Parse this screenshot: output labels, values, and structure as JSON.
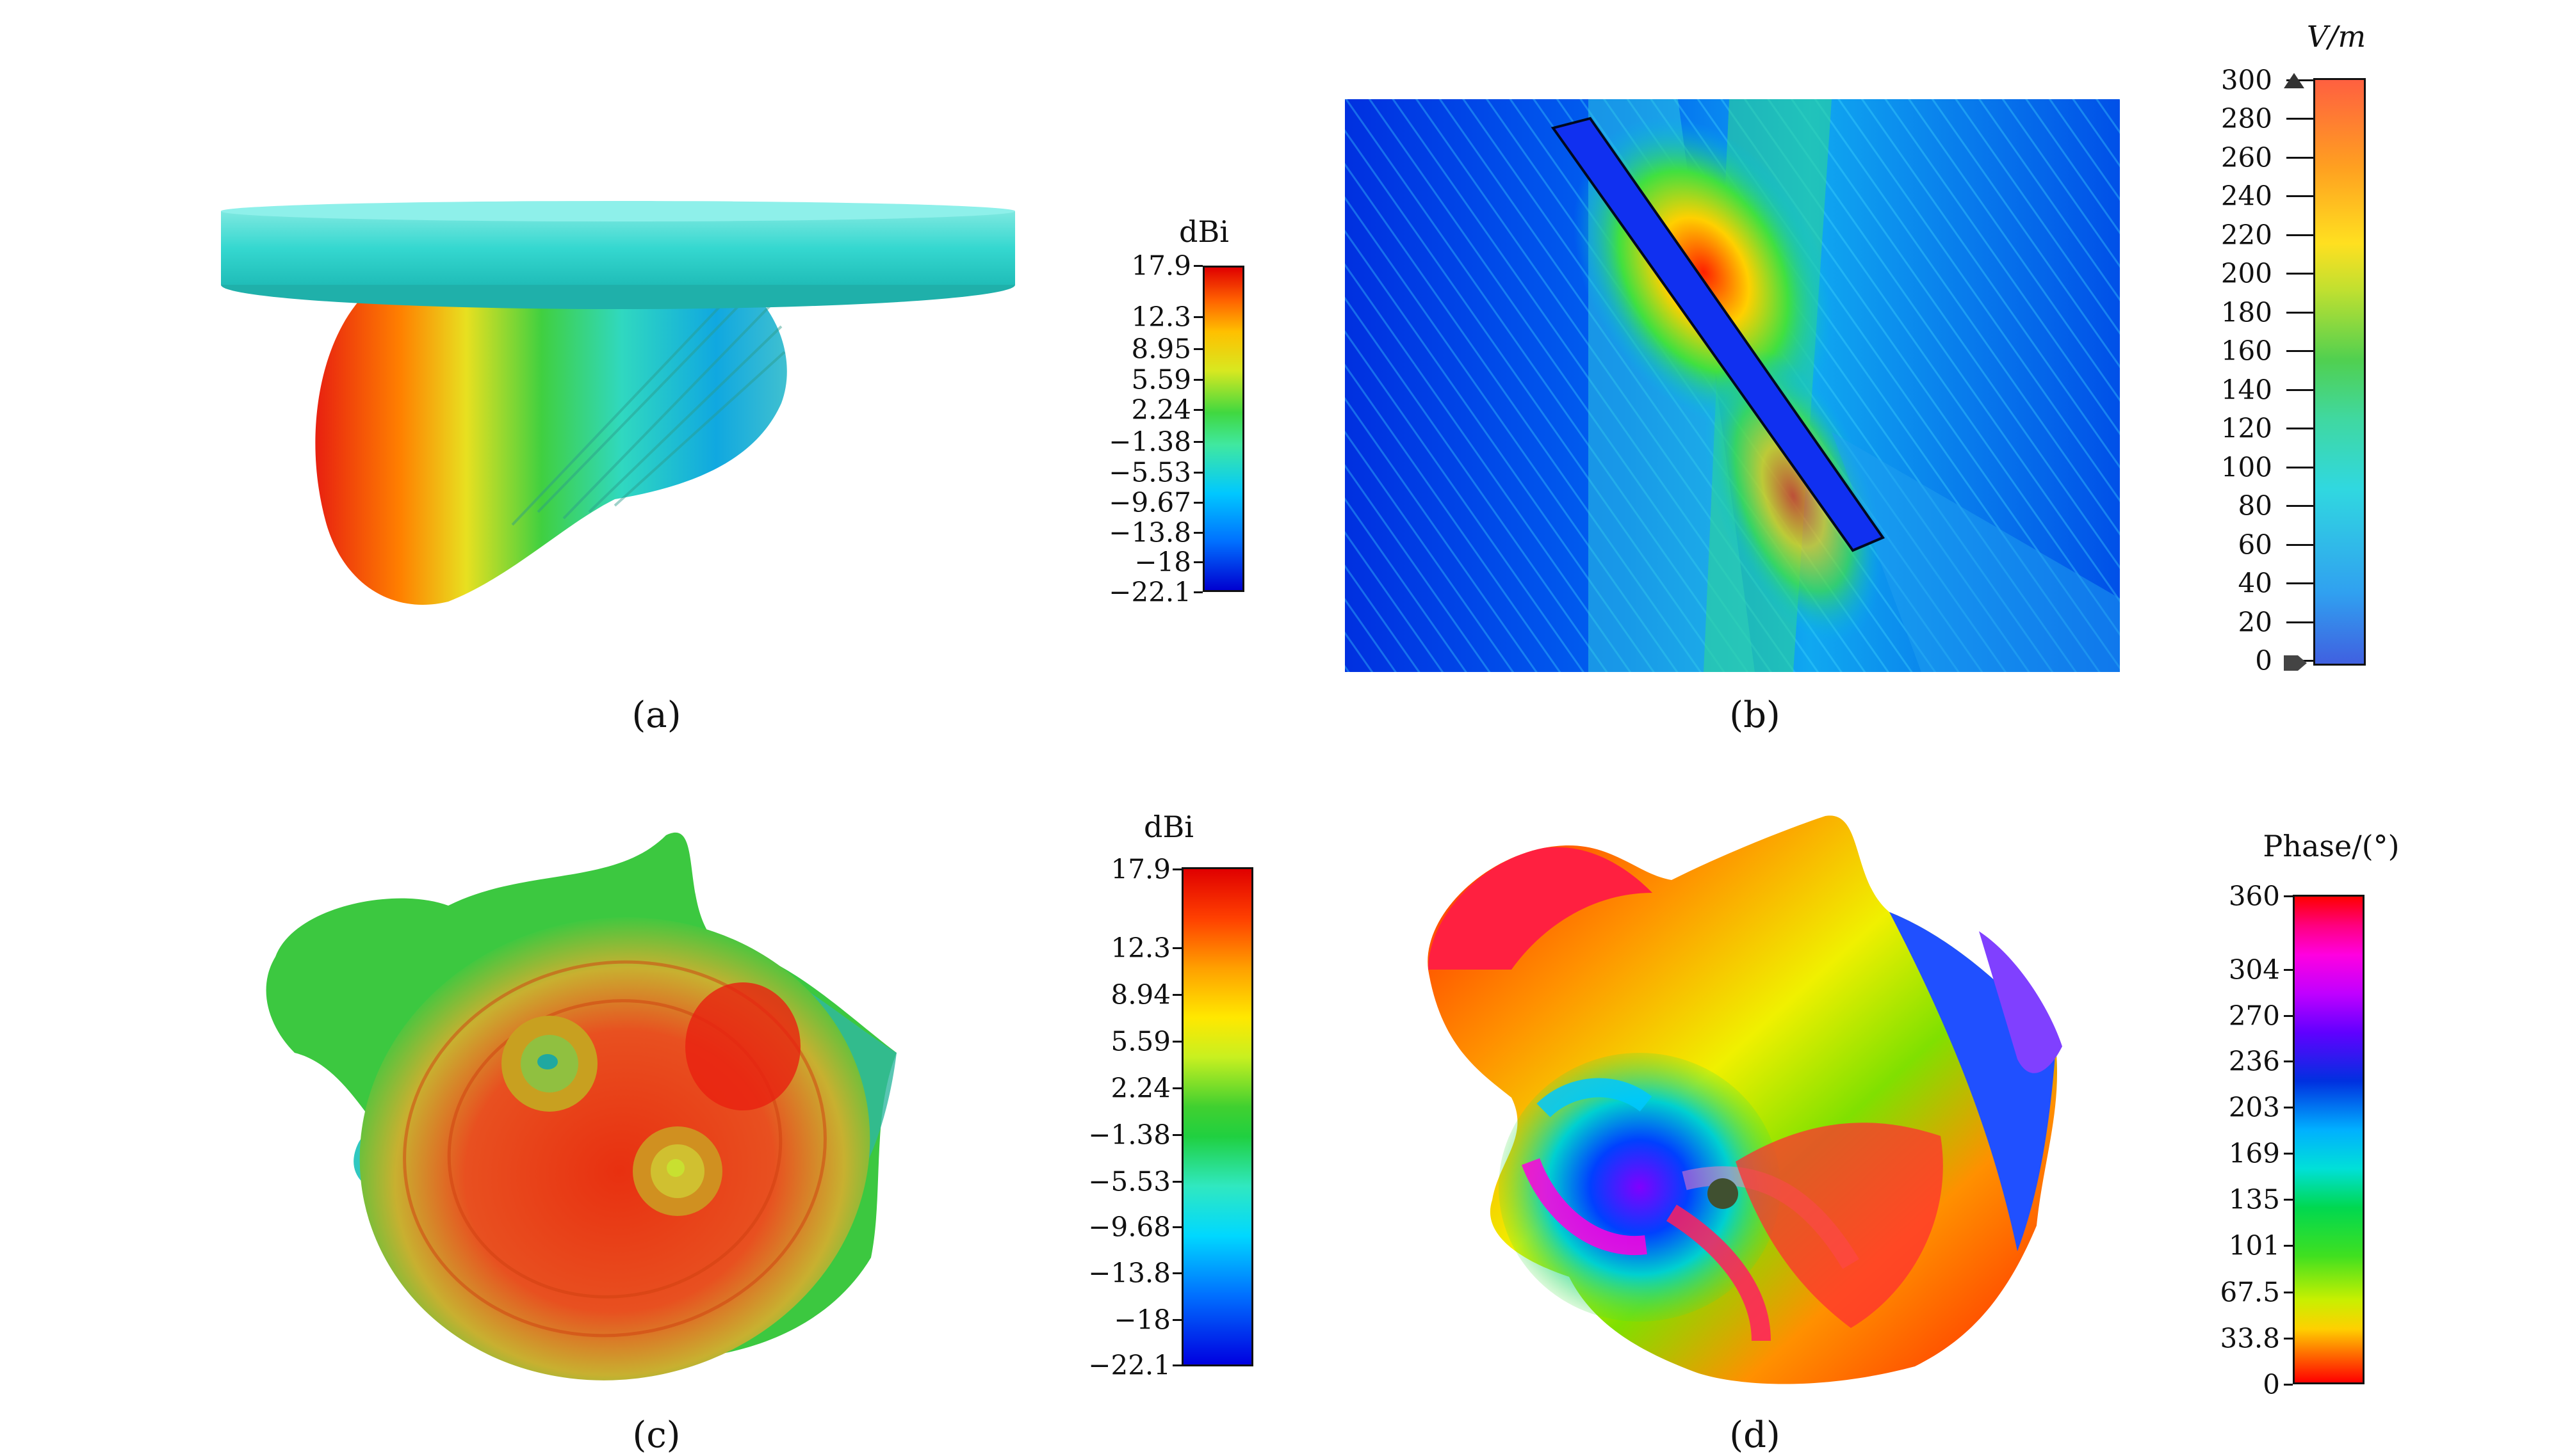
{
  "panels": {
    "a": {
      "caption": "(a)",
      "colorbar": {
        "title": "dBi",
        "ticks": [
          "17.9",
          "12.3",
          "8.95",
          "5.59",
          "2.24",
          "−1.38",
          "−5.53",
          "−9.67",
          "−13.8",
          "−18",
          "−22.1"
        ]
      }
    },
    "b": {
      "caption": "(b)",
      "colorbar": {
        "title": "V/m",
        "ticks": [
          "300",
          "280",
          "260",
          "240",
          "220",
          "200",
          "180",
          "160",
          "140",
          "120",
          "100",
          "80",
          "60",
          "40",
          "20",
          "0"
        ]
      }
    },
    "c": {
      "caption": "(c)",
      "colorbar": {
        "title": "dBi",
        "ticks": [
          "17.9",
          "12.3",
          "8.94",
          "5.59",
          "2.24",
          "−1.38",
          "−5.53",
          "−9.68",
          "−13.8",
          "−18",
          "−22.1"
        ]
      }
    },
    "d": {
      "caption": "(d)",
      "colorbar": {
        "title": "Phase/(°)",
        "ticks": [
          "360",
          "304",
          "270",
          "236",
          "203",
          "169",
          "135",
          "101",
          "67.5",
          "33.8",
          "0"
        ]
      }
    }
  },
  "colors": {
    "jet": [
      "#0000d8",
      "#0060ff",
      "#00c8ff",
      "#30e8b0",
      "#40d840",
      "#c8e820",
      "#ffd000",
      "#ff8000",
      "#e81010"
    ],
    "hsv": [
      "#ff0000",
      "#ff8800",
      "#ffee00",
      "#80ff00",
      "#00e040",
      "#00e0e0",
      "#0040ff",
      "#8000ff",
      "#ff00ff",
      "#ff0000"
    ]
  }
}
